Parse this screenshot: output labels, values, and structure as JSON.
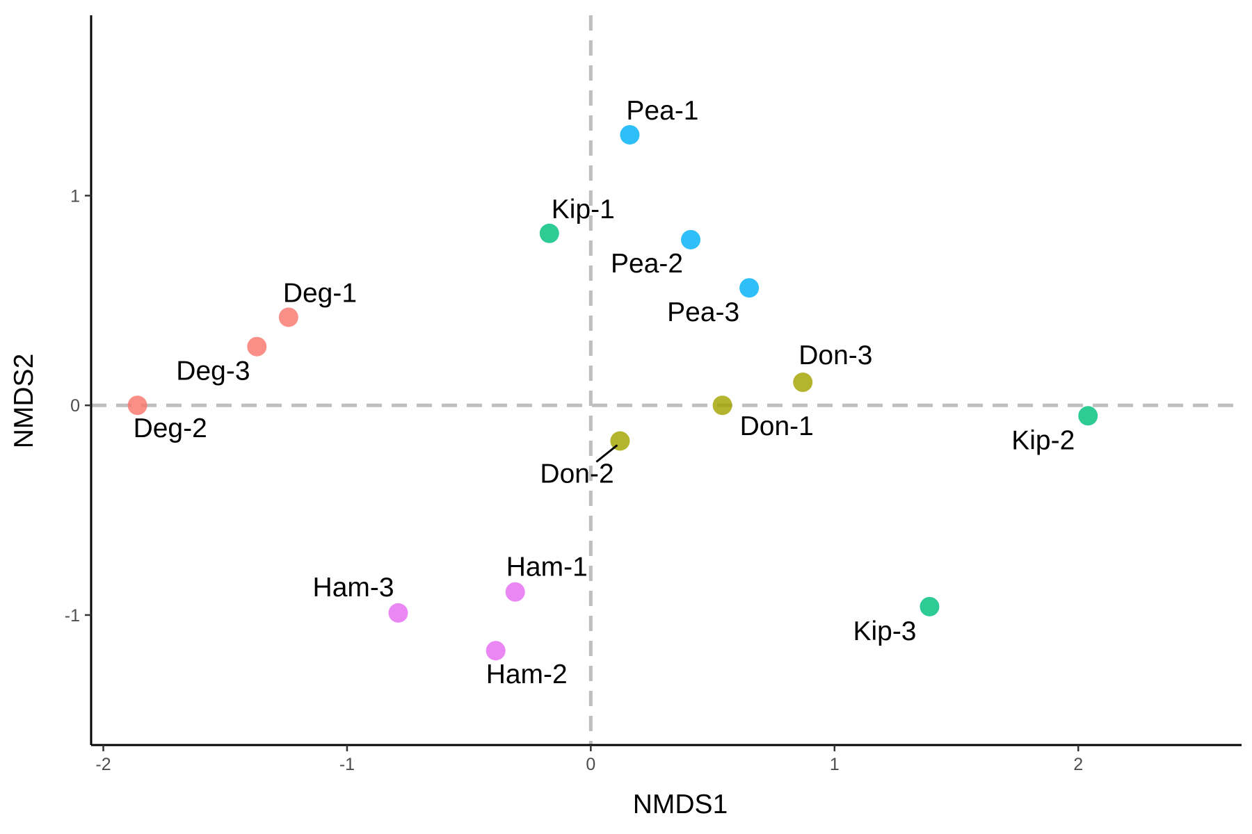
{
  "chart_data": {
    "type": "scatter",
    "title": "",
    "xlabel": "NMDS1",
    "ylabel": "NMDS2",
    "xlim": [
      -2.05,
      2.67
    ],
    "ylim": [
      -1.62,
      1.86
    ],
    "x_ticks": [
      -2,
      -1,
      0,
      1,
      2
    ],
    "y_ticks": [
      -1,
      0,
      1
    ],
    "x_tick_labels": [
      "-2",
      "-1",
      "0",
      "1",
      "2"
    ],
    "y_tick_labels": [
      "-1",
      "0",
      "1"
    ],
    "reference_lines": {
      "x": 0,
      "y": 0,
      "style": "dashed",
      "color": "#bebebe"
    },
    "grid": false,
    "legend": "none",
    "groups": [
      {
        "id": "Deg",
        "color": "#F8766D"
      },
      {
        "id": "Don",
        "color": "#A3A500"
      },
      {
        "id": "Kip",
        "color": "#00BF7D"
      },
      {
        "id": "Pea",
        "color": "#00B0F6"
      },
      {
        "id": "Ham",
        "color": "#E76BF3"
      }
    ],
    "points": [
      {
        "label": "Deg-1",
        "group": "Deg",
        "x": -1.24,
        "y": 0.42
      },
      {
        "label": "Deg-2",
        "group": "Deg",
        "x": -1.86,
        "y": 0.0
      },
      {
        "label": "Deg-3",
        "group": "Deg",
        "x": -1.37,
        "y": 0.28
      },
      {
        "label": "Don-1",
        "group": "Don",
        "x": 0.54,
        "y": 0.0
      },
      {
        "label": "Don-2",
        "group": "Don",
        "x": 0.12,
        "y": -0.17
      },
      {
        "label": "Don-3",
        "group": "Don",
        "x": 0.87,
        "y": 0.11
      },
      {
        "label": "Kip-1",
        "group": "Kip",
        "x": -0.17,
        "y": 0.82
      },
      {
        "label": "Kip-2",
        "group": "Kip",
        "x": 2.04,
        "y": -0.05
      },
      {
        "label": "Kip-3",
        "group": "Kip",
        "x": 1.39,
        "y": -0.96
      },
      {
        "label": "Pea-1",
        "group": "Pea",
        "x": 0.16,
        "y": 1.29
      },
      {
        "label": "Pea-2",
        "group": "Pea",
        "x": 0.41,
        "y": 0.79
      },
      {
        "label": "Pea-3",
        "group": "Pea",
        "x": 0.65,
        "y": 0.56
      },
      {
        "label": "Ham-1",
        "group": "Ham",
        "x": -0.31,
        "y": -0.89
      },
      {
        "label": "Ham-2",
        "group": "Ham",
        "x": -0.39,
        "y": -1.17
      },
      {
        "label": "Ham-3",
        "group": "Ham",
        "x": -0.79,
        "y": -0.99
      }
    ]
  }
}
